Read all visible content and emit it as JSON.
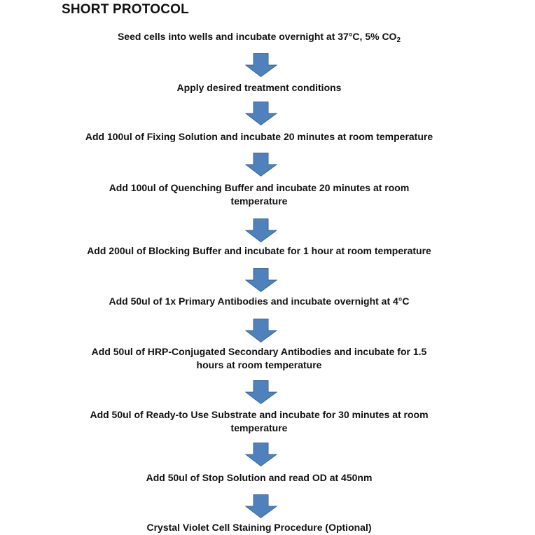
{
  "title": "SHORT PROTOCOL",
  "arrow_color": "#4f81bd",
  "arrow_icon": "down-arrow-icon",
  "steps": [
    {
      "text": "Seed cells into wells and incubate overnight at 37°C, 5% CO",
      "sub": "2"
    },
    {
      "text": "Apply desired treatment conditions"
    },
    {
      "text": "Add 100ul of Fixing Solution and incubate 20 minutes at room temperature"
    },
    {
      "text": "Add 100ul of Quenching Buffer and incubate 20 minutes at room",
      "line2": "temperature"
    },
    {
      "text": "Add 200ul of Blocking Buffer and incubate for 1 hour at room temperature"
    },
    {
      "text": "Add 50ul of 1x Primary Antibodies and incubate overnight at 4°C"
    },
    {
      "text": "Add 50ul of HRP-Conjugated Secondary Antibodies and incubate for 1.5",
      "line2": "hours at room temperature"
    },
    {
      "text": "Add 50ul of Ready-to Use Substrate and incubate for 30 minutes at room",
      "line2": "temperature"
    },
    {
      "text": "Add 50ul of Stop Solution and read OD at 450nm"
    },
    {
      "text": "Crystal Violet Cell Staining Procedure (Optional)"
    }
  ]
}
